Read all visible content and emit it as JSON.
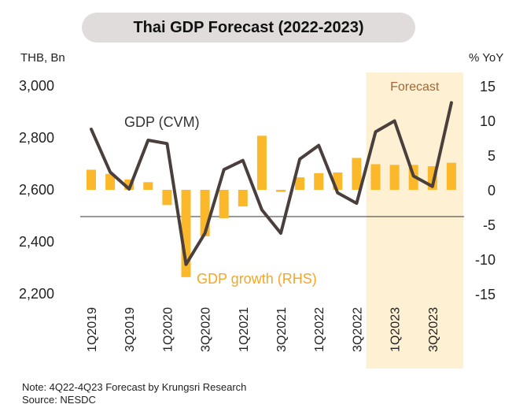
{
  "title": "Thai GDP Forecast (2022-2023)",
  "left_axis_unit": "THB, Bn",
  "right_axis_unit": "% YoY",
  "forecast_label": "Forecast",
  "note": "Note: 4Q22-4Q23 Forecast by Krungsri Research",
  "source": "Source:  NESDC",
  "colors": {
    "line": "#4a3f3c",
    "bar": "#fbb82a",
    "forecast_band": "#fdf0d3",
    "forecast_text": "#a0673a",
    "growth_text": "#f5a623"
  },
  "chart_data": {
    "type": "bar+line",
    "categories": [
      "1Q2019",
      "2Q2019",
      "3Q2019",
      "4Q2019",
      "1Q2020",
      "2Q2020",
      "3Q2020",
      "4Q2020",
      "1Q2021",
      "2Q2021",
      "3Q2021",
      "4Q2021",
      "1Q2022",
      "2Q2022",
      "3Q2022",
      "4Q2022",
      "1Q2023",
      "2Q2023",
      "3Q2023",
      "4Q2023"
    ],
    "tick_labels": [
      "1Q2019",
      "3Q2019",
      "1Q2020",
      "3Q2020",
      "1Q2021",
      "3Q2021",
      "1Q2022",
      "3Q2022",
      "1Q2023",
      "3Q2023"
    ],
    "forecast_start": "4Q2022",
    "series": [
      {
        "name": "GDP (CVM)",
        "axis": "left",
        "kind": "line",
        "values": [
          2830,
          2665,
          2600,
          2788,
          2775,
          2310,
          2430,
          2675,
          2710,
          2520,
          2430,
          2715,
          2768,
          2585,
          2545,
          2820,
          2862,
          2650,
          2610,
          2932
        ]
      },
      {
        "name": "GDP growth (RHS)",
        "axis": "right",
        "kind": "bar",
        "values": [
          2.9,
          2.3,
          1.5,
          1.1,
          -2.2,
          -12.6,
          -6.7,
          -4.1,
          -2.4,
          7.8,
          -0.3,
          1.8,
          2.4,
          2.5,
          4.6,
          3.7,
          3.6,
          3.6,
          3.4,
          3.9
        ]
      }
    ],
    "left_axis": {
      "ylim": [
        2200,
        3000
      ],
      "ticks": [
        2200,
        2400,
        2600,
        2800,
        3000
      ],
      "tick_labels": [
        "2,200",
        "2,400",
        "2,600",
        "2,800",
        "3,000"
      ]
    },
    "right_axis": {
      "ylim": [
        -15,
        15
      ],
      "ticks": [
        -15,
        -10,
        -5,
        0,
        5,
        10,
        15
      ]
    },
    "grid": false
  }
}
